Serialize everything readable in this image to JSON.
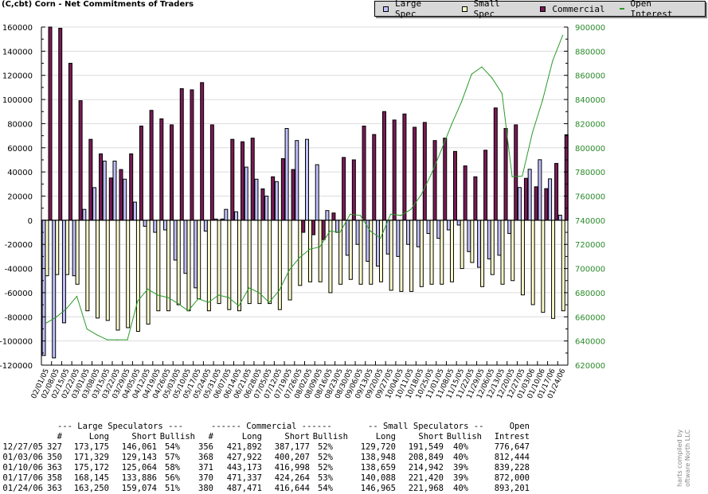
{
  "title": "(C,cbt) Corn - Net Commitments of Traders",
  "legend": [
    {
      "label": "Large Spec",
      "color": "#c0c0ff",
      "kind": "box"
    },
    {
      "label": "Small Spec",
      "color": "#ffffcc",
      "kind": "box"
    },
    {
      "label": "Commercial",
      "color": "#7a1a55",
      "kind": "box"
    },
    {
      "label": "Open Interest",
      "color": "#2a9a2a",
      "kind": "line"
    }
  ],
  "chart_data": {
    "type": "bar",
    "title": "(C,cbt) Corn - Net Commitments of Traders",
    "ylim": [
      -120000,
      160000
    ],
    "y_ticks": [
      "160000",
      "140000",
      "120000",
      "100000",
      "80000",
      "60000",
      "40000",
      "20000",
      "0",
      "-20000",
      "-40000",
      "-60000",
      "-80000",
      "-100000",
      "-120000"
    ],
    "y2lim": [
      620000,
      900000
    ],
    "y2_ticks": [
      "900000",
      "880000",
      "860000",
      "840000",
      "820000",
      "800000",
      "780000",
      "760000",
      "740000",
      "720000",
      "700000",
      "680000",
      "660000",
      "640000",
      "620000"
    ],
    "grid": true,
    "legend_position": "top-right",
    "categories": [
      "02/01/05",
      "02/08/05",
      "02/15/05",
      "02/22/05",
      "03/01/05",
      "03/08/05",
      "03/15/05",
      "03/22/05",
      "03/29/05",
      "04/05/05",
      "04/12/05",
      "04/19/05",
      "04/26/05",
      "05/03/05",
      "05/10/05",
      "05/17/05",
      "05/24/05",
      "05/31/05",
      "06/07/05",
      "06/14/05",
      "06/21/05",
      "06/28/05",
      "07/05/05",
      "07/12/05",
      "07/19/05",
      "07/26/05",
      "08/02/05",
      "08/09/05",
      "08/16/05",
      "08/23/05",
      "08/30/05",
      "09/06/05",
      "09/13/05",
      "09/20/05",
      "09/27/05",
      "10/04/05",
      "10/11/05",
      "10/18/05",
      "10/25/05",
      "11/01/05",
      "11/08/05",
      "11/15/05",
      "11/22/05",
      "11/29/05",
      "12/06/05",
      "12/13/05",
      "12/20/05",
      "12/27/05",
      "01/03/06",
      "01/10/06",
      "01/17/06",
      "01/24/06"
    ],
    "series": [
      {
        "name": "Large Spec",
        "axis": "left",
        "values": [
          -112000,
          -114000,
          -85000,
          -46000,
          9000,
          27000,
          49000,
          49000,
          34000,
          15000,
          -5000,
          -10000,
          -8000,
          -33000,
          -44000,
          -56000,
          -9000,
          1000,
          9000,
          7000,
          44000,
          34000,
          20000,
          32000,
          76000,
          66000,
          67000,
          46000,
          8000,
          -10000,
          -29000,
          -20000,
          -34000,
          -38000,
          -28000,
          -30000,
          -20000,
          -22000,
          -11000,
          -15000,
          -8000,
          -4000,
          -26000,
          -39000,
          -32000,
          -29000,
          -11000,
          27114,
          42186,
          50108,
          34259,
          4176
        ]
      },
      {
        "name": "Small Spec",
        "axis": "left",
        "values": [
          -46000,
          -45000,
          -45000,
          -53000,
          -75000,
          -81000,
          -83000,
          -91000,
          -89000,
          -92000,
          -86000,
          -75000,
          -75000,
          -70000,
          -75000,
          -65000,
          -75000,
          -69000,
          -74000,
          -75000,
          -69000,
          -69000,
          -69000,
          -74000,
          -66000,
          -54000,
          -51000,
          -51000,
          -60000,
          -53000,
          -49000,
          -53000,
          -53000,
          -51000,
          -58000,
          -59000,
          -59000,
          -55000,
          -53000,
          -53000,
          -51000,
          -40000,
          -35000,
          -55000,
          -45000,
          -53000,
          -50000,
          -61829,
          -69901,
          -76283,
          -81332,
          -75003
        ]
      },
      {
        "name": "Commercial",
        "axis": "left",
        "values": [
          160000,
          159000,
          130000,
          99000,
          67000,
          55000,
          35000,
          42000,
          55000,
          78000,
          91000,
          84000,
          79000,
          109000,
          108000,
          114000,
          79000,
          1000,
          67000,
          65000,
          68000,
          26000,
          36000,
          51000,
          42000,
          -10000,
          -12000,
          -16000,
          6000,
          52000,
          50000,
          78000,
          71000,
          90000,
          83000,
          88000,
          77000,
          81000,
          66000,
          68000,
          57000,
          45000,
          36000,
          58000,
          93000,
          76000,
          79000,
          34715,
          27715,
          26175,
          47073,
          70827
        ]
      },
      {
        "name": "Open Interest",
        "axis": "right",
        "values": [
          655000,
          660000,
          667000,
          677000,
          650000,
          645000,
          641000,
          641000,
          641000,
          673000,
          683000,
          678000,
          676000,
          671000,
          665000,
          675000,
          672000,
          678000,
          676000,
          669000,
          684000,
          680000,
          672000,
          682000,
          699000,
          709000,
          716000,
          718000,
          731000,
          730000,
          745000,
          744000,
          731000,
          725000,
          745000,
          744000,
          749000,
          761000,
          778000,
          798000,
          819000,
          838000,
          861000,
          867000,
          858000,
          845000,
          776000,
          776647,
          812444,
          839228,
          872000,
          893201
        ]
      }
    ],
    "xlabel": "",
    "ylabel": ""
  },
  "table": {
    "group_headers": [
      "--- Large Speculators ---",
      "------ Commercial ------",
      "-- Small Speculators --",
      "Open"
    ],
    "columns": [
      "#",
      "Long",
      "Short",
      "Bullish",
      "#",
      "Long",
      "Short",
      "Bullish",
      "Long",
      "Short",
      "Bullish",
      "Intrest"
    ],
    "rows": [
      [
        "12/27/05",
        "327",
        "173,175",
        "146,061",
        "54%",
        "356",
        "421,892",
        "387,177",
        "52%",
        "129,720",
        "191,549",
        "40%",
        "776,647"
      ],
      [
        "01/03/06",
        "350",
        "171,329",
        "129,143",
        "57%",
        "368",
        "427,922",
        "400,207",
        "52%",
        "138,948",
        "208,849",
        "40%",
        "812,444"
      ],
      [
        "01/10/06",
        "363",
        "175,172",
        "125,064",
        "58%",
        "371",
        "443,173",
        "416,998",
        "52%",
        "138,659",
        "214,942",
        "39%",
        "839,228"
      ],
      [
        "01/17/06",
        "358",
        "168,145",
        "133,886",
        "56%",
        "370",
        "471,337",
        "424,264",
        "53%",
        "140,088",
        "221,420",
        "39%",
        "872,000"
      ],
      [
        "01/24/06",
        "363",
        "163,250",
        "159,074",
        "51%",
        "380",
        "487,471",
        "416,644",
        "54%",
        "146,965",
        "221,968",
        "40%",
        "893,201"
      ]
    ]
  },
  "credit": [
    "harts compiled by",
    "oftware North LLC"
  ]
}
